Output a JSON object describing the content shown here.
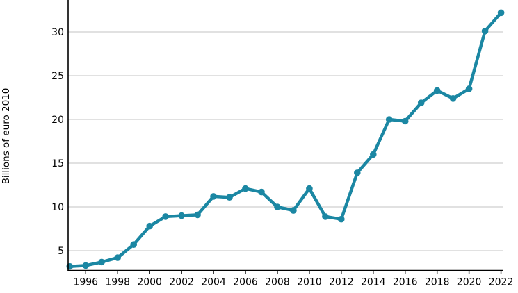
{
  "chart_data": {
    "type": "line",
    "title": "",
    "xlabel": "",
    "ylabel": "Billions of euro 2010",
    "x": [
      1995,
      1996,
      1997,
      1998,
      1999,
      2000,
      2001,
      2002,
      2003,
      2004,
      2005,
      2006,
      2007,
      2008,
      2009,
      2010,
      2011,
      2012,
      2013,
      2014,
      2015,
      2016,
      2017,
      2018,
      2019,
      2020,
      2021,
      2022
    ],
    "series": [
      {
        "values": [
          3.2,
          3.3,
          3.7,
          4.2,
          5.7,
          7.8,
          8.9,
          9.0,
          9.1,
          11.2,
          11.1,
          12.1,
          11.7,
          10.0,
          9.6,
          12.1,
          8.9,
          8.6,
          13.9,
          16.0,
          20.0,
          19.8,
          21.9,
          23.3,
          22.4,
          23.5,
          30.1,
          32.2
        ]
      }
    ],
    "x_ticks": [
      1996,
      1998,
      2000,
      2002,
      2004,
      2006,
      2008,
      2010,
      2012,
      2014,
      2016,
      2018,
      2020,
      2022
    ],
    "y_ticks": [
      5,
      10,
      15,
      20,
      25,
      30
    ],
    "xlim": [
      1994.9,
      2022.15
    ],
    "ylim": [
      2.74,
      33.65
    ],
    "grid": "horizontal-only",
    "legend": "none",
    "marker": "circle",
    "colors": {
      "line": "#1b87a3",
      "marker": "#1b87a3",
      "gridline": "#c3c3c3",
      "axis": "#000000",
      "tick_label": "#000000"
    }
  }
}
